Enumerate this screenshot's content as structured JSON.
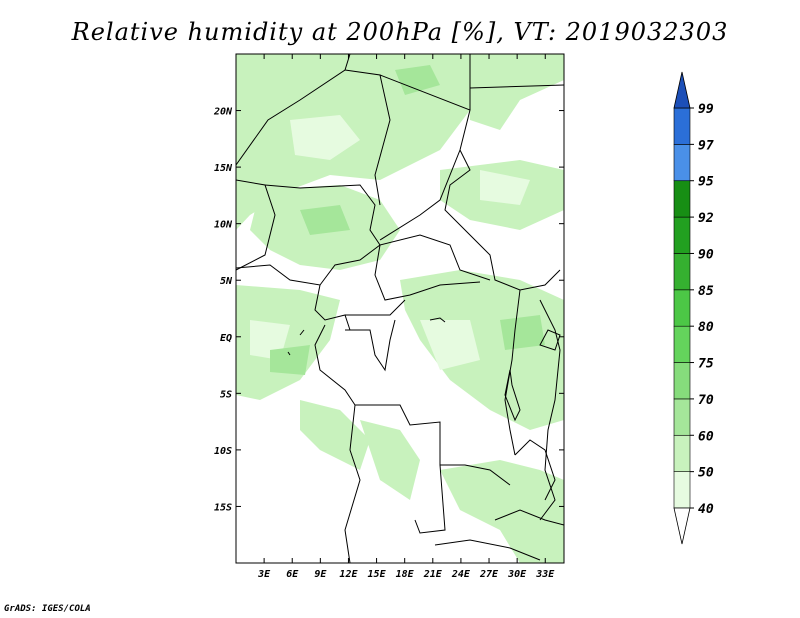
{
  "title": "Relative humidity at 200hPa [%], VT: 2019032303",
  "credit": "GrADS: IGES/COLA",
  "map": {
    "lon_range": [
      0,
      35
    ],
    "lat_range": [
      -20,
      25
    ],
    "lat_ticks": [
      {
        "value": 20,
        "label": "20N"
      },
      {
        "value": 15,
        "label": "15N"
      },
      {
        "value": 10,
        "label": "10N"
      },
      {
        "value": 5,
        "label": "5N"
      },
      {
        "value": 0,
        "label": "EQ"
      },
      {
        "value": -5,
        "label": "5S"
      },
      {
        "value": -10,
        "label": "10S"
      },
      {
        "value": -15,
        "label": "15S"
      }
    ],
    "lon_ticks": [
      {
        "value": 3,
        "label": "3E"
      },
      {
        "value": 6,
        "label": "6E"
      },
      {
        "value": 9,
        "label": "9E"
      },
      {
        "value": 12,
        "label": "12E"
      },
      {
        "value": 15,
        "label": "15E"
      },
      {
        "value": 18,
        "label": "18E"
      },
      {
        "value": 21,
        "label": "21E"
      },
      {
        "value": 24,
        "label": "24E"
      },
      {
        "value": 27,
        "label": "27E"
      },
      {
        "value": 30,
        "label": "30E"
      },
      {
        "value": 33,
        "label": "33E"
      }
    ]
  },
  "colorbar": {
    "levels": [
      {
        "label": "40",
        "color": "#ffffff"
      },
      {
        "label": "50",
        "color": "#e6fbe0"
      },
      {
        "label": "60",
        "color": "#c8f2bd"
      },
      {
        "label": "70",
        "color": "#a5e69a"
      },
      {
        "label": "75",
        "color": "#86dc7c"
      },
      {
        "label": "80",
        "color": "#64d45c"
      },
      {
        "label": "85",
        "color": "#4cc746"
      },
      {
        "label": "90",
        "color": "#35b030"
      },
      {
        "label": "92",
        "color": "#1f961c"
      },
      {
        "label": "95",
        "color": "#4a90e8"
      },
      {
        "label": "97",
        "color": "#2b6fd8"
      },
      {
        "label": "99",
        "color": "#1c4fb8"
      }
    ],
    "colors": {
      "low_end": "#ffffff",
      "b40_50": "#e6fbe0",
      "b50_60": "#c8f2bd",
      "b60_70": "#a5e69a",
      "b70_75": "#86dc7c",
      "b75_80": "#64d45c",
      "b80_85": "#4cc746",
      "b85_90": "#35b030",
      "b90_92": "#22a020",
      "b92_95": "#178e14",
      "b95_97": "#4a90e8",
      "b97_99": "#2b6fd8",
      "high_end": "#1c4fb8"
    }
  }
}
